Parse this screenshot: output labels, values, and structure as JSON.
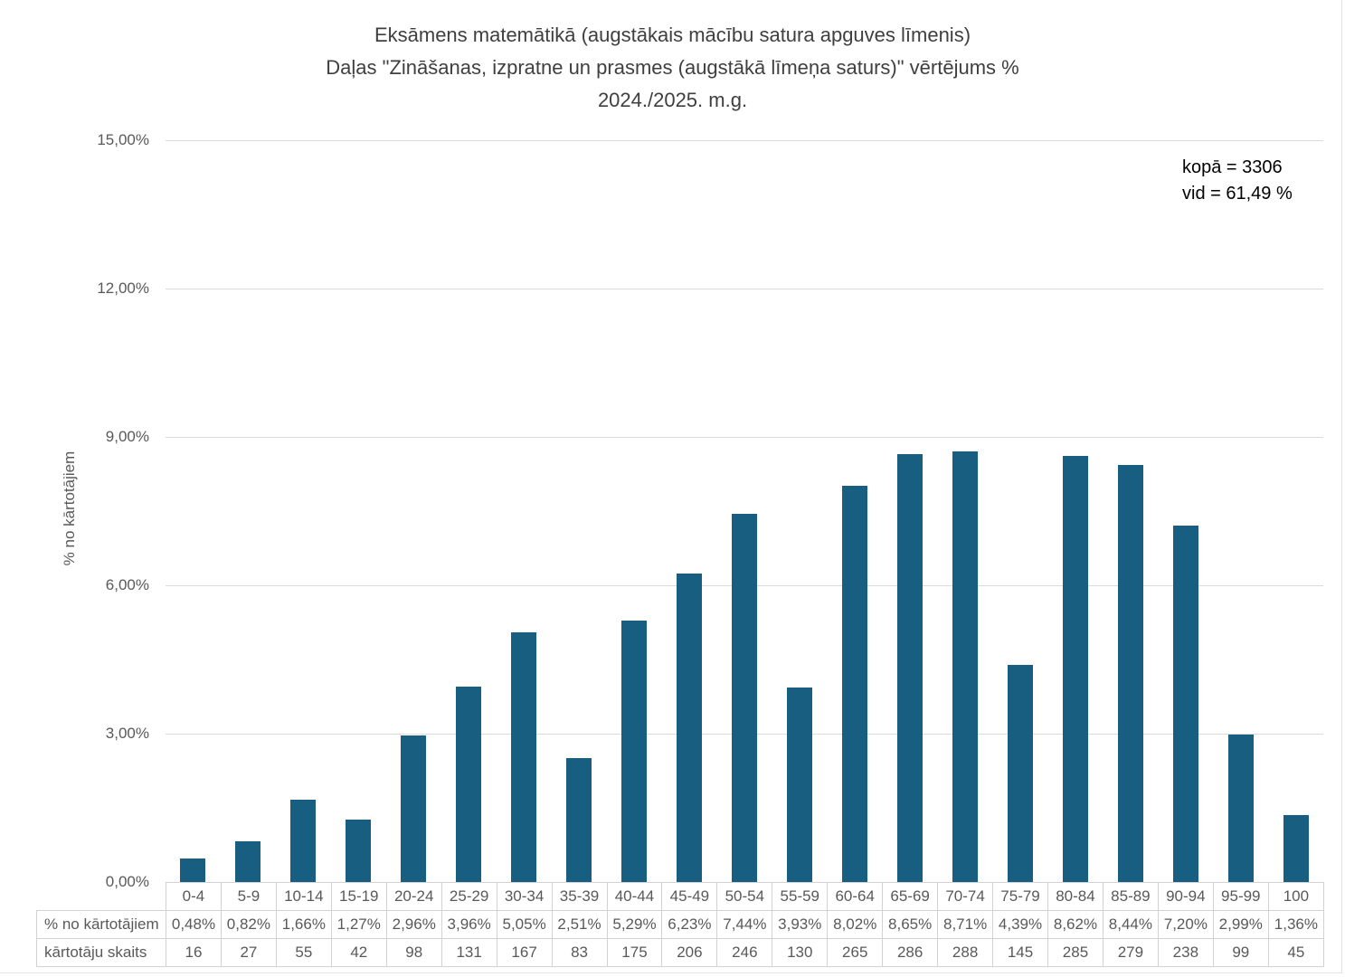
{
  "title": {
    "line1": "Eksāmens matemātikā (augstākais mācību satura apguves līmenis)",
    "line2": "Daļas \"Zināšanas, izpratne un prasmes (augstākā līmeņa saturs)\" vērtējums %",
    "line3": "2024./2025. m.g."
  },
  "annotation": {
    "total": "kopā = 3306",
    "average": "vid = 61,49 %"
  },
  "y_axis": {
    "title": "% no kārtotājiem",
    "tick_labels": [
      "15,00%",
      "12,00%",
      "9,00%",
      "6,00%",
      "3,00%",
      "0,00%"
    ],
    "min_percent": 0,
    "max_percent": 15
  },
  "table": {
    "percent_row_label": "% no kārtotājiem",
    "count_row_label": "kārtotāju skaits"
  },
  "chart_data": {
    "type": "bar",
    "title": "Eksāmens matemātikā (augstākais mācību satura apguves līmenis) Daļas \"Zināšanas, izpratne un prasmes (augstākā līmeņa saturs)\" vērtējums % 2024./2025. m.g.",
    "xlabel": "",
    "ylabel": "% no kārtotājiem",
    "ylim": [
      0,
      15
    ],
    "grid": true,
    "legend": false,
    "bar_color": "#175e80",
    "categories": [
      "0-4",
      "5-9",
      "10-14",
      "15-19",
      "20-24",
      "25-29",
      "30-34",
      "35-39",
      "40-44",
      "45-49",
      "50-54",
      "55-59",
      "60-64",
      "65-69",
      "70-74",
      "75-79",
      "80-84",
      "85-89",
      "90-94",
      "95-99",
      "100"
    ],
    "series": [
      {
        "name": "% no kārtotājiem",
        "values": [
          0.48,
          0.82,
          1.66,
          1.27,
          2.96,
          3.96,
          5.05,
          2.51,
          5.29,
          6.23,
          7.44,
          3.93,
          8.02,
          8.65,
          8.71,
          4.39,
          8.62,
          8.44,
          7.2,
          2.99,
          1.36
        ],
        "display": [
          "0,48%",
          "0,82%",
          "1,66%",
          "1,27%",
          "2,96%",
          "3,96%",
          "5,05%",
          "2,51%",
          "5,29%",
          "6,23%",
          "7,44%",
          "3,93%",
          "8,02%",
          "8,65%",
          "8,71%",
          "4,39%",
          "8,62%",
          "8,44%",
          "7,20%",
          "2,99%",
          "1,36%"
        ]
      },
      {
        "name": "kārtotāju skaits",
        "values": [
          16,
          27,
          55,
          42,
          98,
          131,
          167,
          83,
          175,
          206,
          246,
          130,
          265,
          286,
          288,
          145,
          285,
          279,
          238,
          99,
          45
        ],
        "display": [
          "16",
          "27",
          "55",
          "42",
          "98",
          "131",
          "167",
          "83",
          "175",
          "206",
          "246",
          "130",
          "265",
          "286",
          "288",
          "145",
          "285",
          "279",
          "238",
          "99",
          "45"
        ]
      }
    ],
    "summary": {
      "total_count": 3306,
      "average_percent": "61,49 %"
    }
  }
}
